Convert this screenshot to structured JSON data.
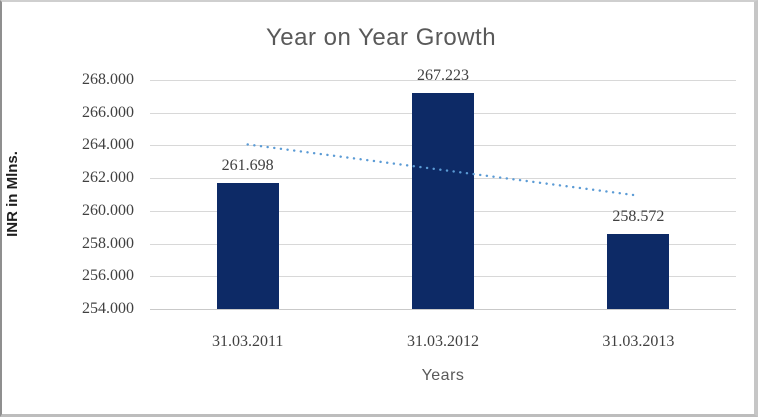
{
  "chart_data": {
    "type": "bar",
    "title": "Year on Year Growth",
    "xlabel": "Years",
    "ylabel": "INR in Mlns.",
    "categories": [
      "31.03.2011",
      "31.03.2012",
      "31.03.2013"
    ],
    "values": [
      261.698,
      267.223,
      258.572
    ],
    "data_labels": [
      "261.698",
      "267.223",
      "258.572"
    ],
    "ytick_labels": [
      "268.000",
      "266.000",
      "264.000",
      "262.000",
      "260.000",
      "258.000",
      "256.000",
      "254.000"
    ],
    "ylim": [
      254,
      268
    ],
    "grid": "horizontal",
    "legend": "none",
    "bar_color": "#0d2a66",
    "label_color": "#404040",
    "title_color": "#595959",
    "gridline_color": "#d8d8d8",
    "trendline": {
      "type": "linear",
      "style": "dotted",
      "color": "#5b9bd5",
      "start_value": 264.06,
      "end_value": 260.93
    }
  }
}
